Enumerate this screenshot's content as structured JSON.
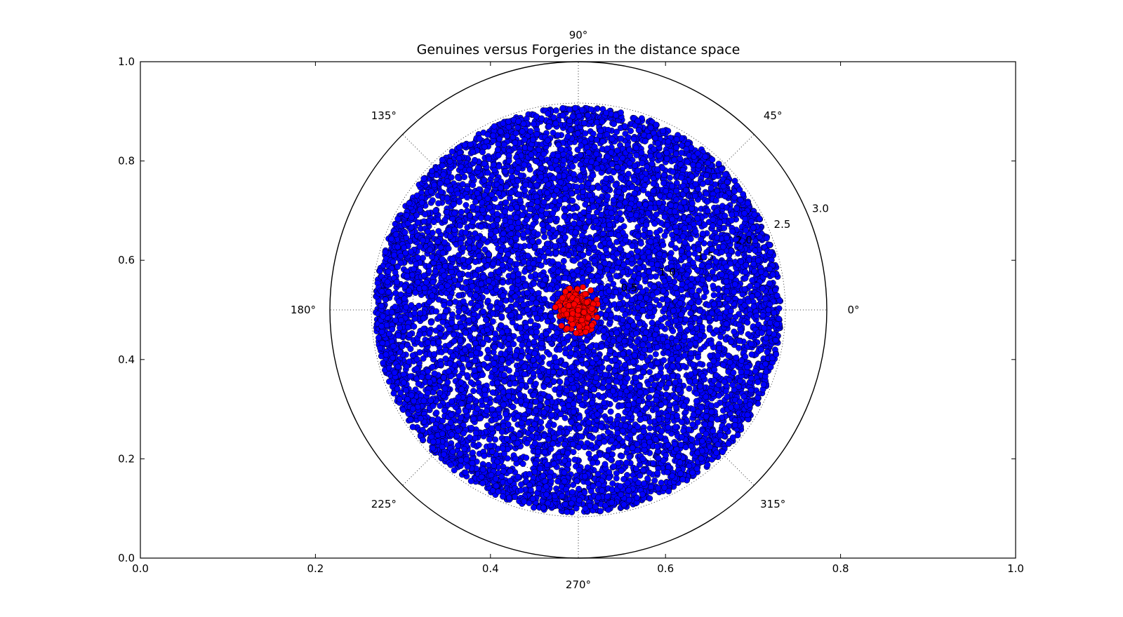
{
  "chart_data": {
    "type": "scatter",
    "title": "Genuines versus Forgeries in the distance space",
    "projection": "polar",
    "polar": {
      "theta_ticks_deg": [
        0,
        45,
        90,
        135,
        180,
        225,
        270,
        315
      ],
      "theta_tick_labels": [
        "0°",
        "45°",
        "90°",
        "135°",
        "180°",
        "225°",
        "270°",
        "315°"
      ],
      "r_ticks": [
        0.5,
        1.0,
        1.5,
        2.0,
        2.5,
        3.0
      ],
      "r_tick_labels": [
        "0.5",
        "1.0",
        "1.5",
        "2.0",
        "2.5",
        "3.0"
      ],
      "r_max": 3.0,
      "grid": true
    },
    "cartesian_axes": {
      "x_ticks": [
        "0.0",
        "0.2",
        "0.4",
        "0.6",
        "0.8",
        "1.0"
      ],
      "y_ticks": [
        "0.0",
        "0.2",
        "0.4",
        "0.6",
        "0.8",
        "1.0"
      ],
      "xlim": [
        0,
        1
      ],
      "ylim": [
        0,
        1
      ]
    },
    "series": [
      {
        "color": "#0000ff",
        "edge_color": "#000000",
        "center_r": 0.0,
        "r_max_approx": 2.45,
        "points_approx": 9000
      },
      {
        "color": "#ff0000",
        "edge_color": "#000000",
        "center_r": 0.0,
        "r_max_approx": 0.28,
        "points_approx": 300
      }
    ]
  }
}
